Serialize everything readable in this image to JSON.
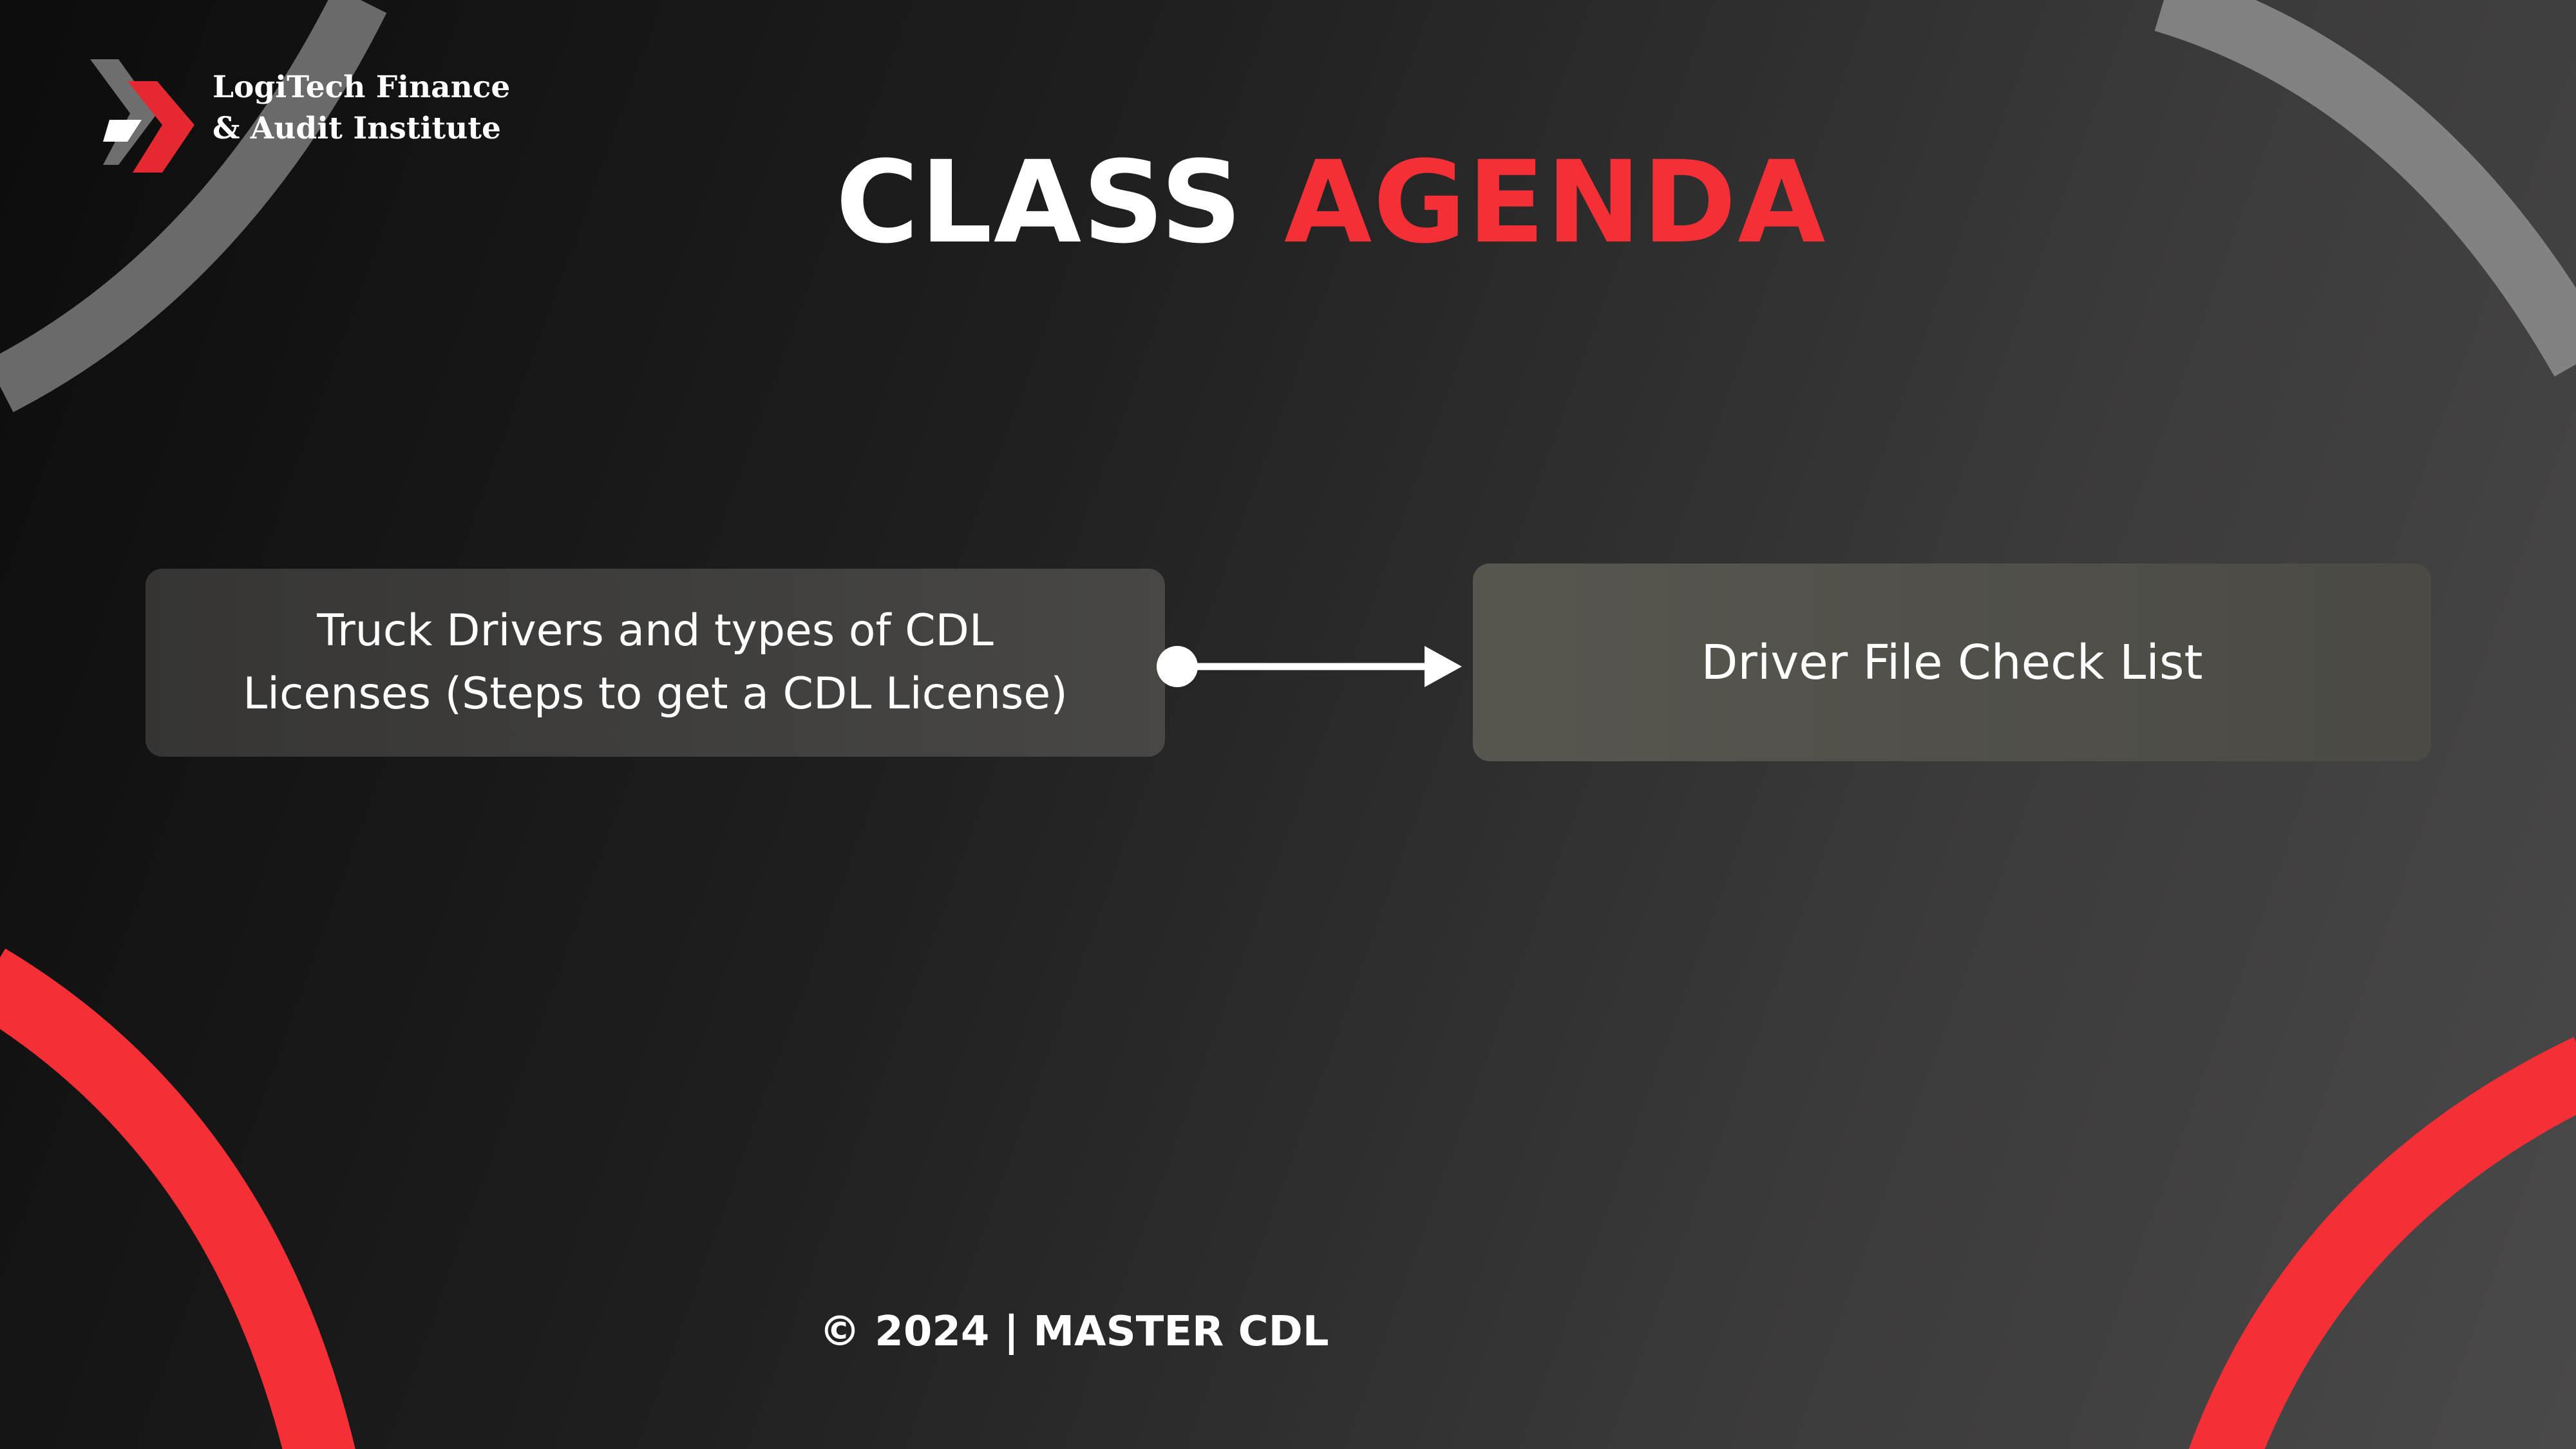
{
  "colors": {
    "accent_red": "#f42f36",
    "text_white": "#ffffff",
    "arc_gray": "#8a8a8a"
  },
  "logo": {
    "icon": "double-chevron-icon",
    "line1": "LogiTech Finance",
    "line2": "& Audit Institute"
  },
  "title": {
    "word1": "CLASS",
    "word2": "AGENDA"
  },
  "agenda": {
    "item1_line1": "Truck Drivers and types of CDL",
    "item1_line2": "Licenses (Steps to get a CDL License)",
    "item2": "Driver File Check List",
    "connector_icon": "arrow-right-icon"
  },
  "footer": {
    "text": "© 2024 | MASTER CDL"
  }
}
